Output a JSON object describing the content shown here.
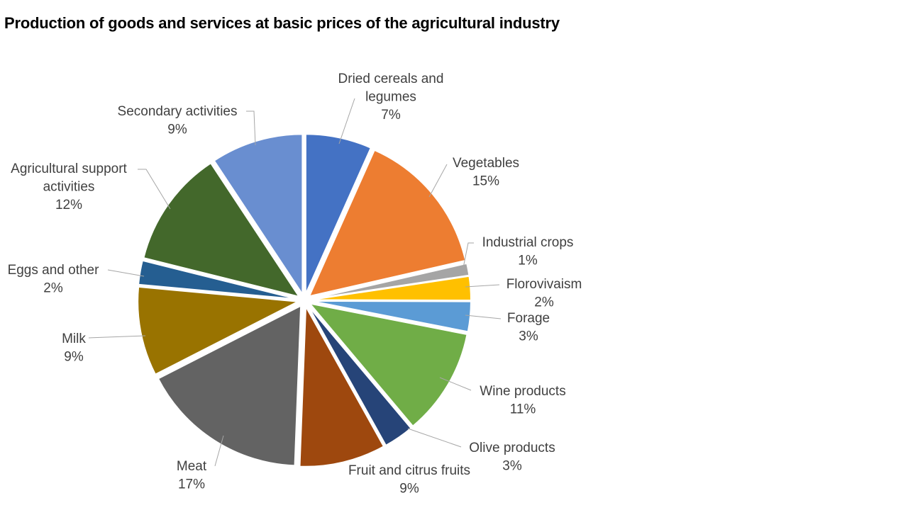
{
  "chart_data": {
    "type": "pie",
    "title": "Production of goods and services at basic prices of the agricultural industry",
    "slices": [
      {
        "label": "Dried cereals and legumes",
        "value": 6.6,
        "percent_label": "7%",
        "color": "#4472C4"
      },
      {
        "label": "Vegetables",
        "value": 14.6,
        "percent_label": "15%",
        "color": "#ED7D31"
      },
      {
        "label": "Industrial crops",
        "value": 1.2,
        "percent_label": "1%",
        "color": "#A5A5A5"
      },
      {
        "label": "Florovivaism",
        "value": 2.4,
        "percent_label": "2%",
        "color": "#FFC000"
      },
      {
        "label": "Forage",
        "value": 3.0,
        "percent_label": "3%",
        "color": "#5B9BD5"
      },
      {
        "label": "Wine products",
        "value": 10.7,
        "percent_label": "11%",
        "color": "#70AD47"
      },
      {
        "label": "Olive products",
        "value": 3.0,
        "percent_label": "3%",
        "color": "#264478"
      },
      {
        "label": "Fruit and citrus fruits",
        "value": 8.6,
        "percent_label": "9%",
        "color": "#9E480E"
      },
      {
        "label": "Meat",
        "value": 16.7,
        "percent_label": "17%",
        "color": "#636363"
      },
      {
        "label": "Milk",
        "value": 8.9,
        "percent_label": "9%",
        "color": "#997300"
      },
      {
        "label": "Eggs and other",
        "value": 2.4,
        "percent_label": "2%",
        "color": "#255E91"
      },
      {
        "label": "Agricultural support activities",
        "value": 11.7,
        "percent_label": "12%",
        "color": "#43682B"
      },
      {
        "label": "Secondary activities",
        "value": 9.2,
        "percent_label": "9%",
        "color": "#698ED0"
      }
    ],
    "label_lines": [
      [
        "Dried cereals and",
        "legumes",
        "7%"
      ],
      [
        "Vegetables",
        "15%"
      ],
      [
        "Industrial crops",
        "1%"
      ],
      [
        "Florovivaism",
        "2%"
      ],
      [
        "Forage",
        "3%"
      ],
      [
        "Wine products",
        "11%"
      ],
      [
        "Olive products",
        "3%"
      ],
      [
        "Fruit and citrus fruits",
        "9%"
      ],
      [
        "Meat",
        "17%"
      ],
      [
        "Milk",
        "9%"
      ],
      [
        "Eggs and other",
        "2%"
      ],
      [
        "Agricultural support",
        "activities",
        "12%"
      ],
      [
        "Secondary activities",
        "9%"
      ]
    ],
    "legend": "none",
    "exploded": true,
    "leader_line_color": "#A6A6A6"
  }
}
